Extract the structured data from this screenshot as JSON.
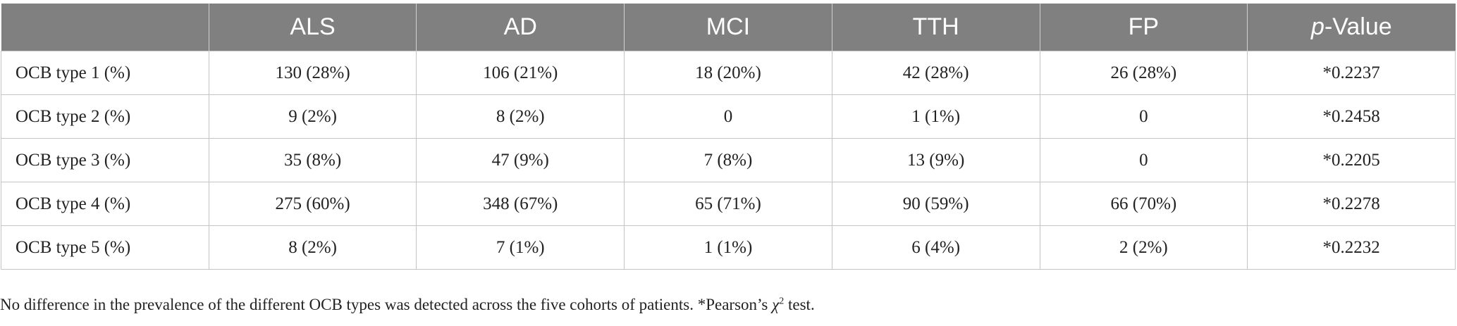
{
  "table": {
    "header": [
      "",
      "ALS",
      "AD",
      "MCI",
      "TTH",
      "FP",
      {
        "italic": "p",
        "text": "-Value"
      }
    ],
    "rows": [
      [
        "OCB type 1 (%)",
        "130 (28%)",
        "106 (21%)",
        "18 (20%)",
        "42 (28%)",
        "26 (28%)",
        "*0.2237"
      ],
      [
        "OCB type 2 (%)",
        "9 (2%)",
        "8 (2%)",
        "0",
        "1 (1%)",
        "0",
        "*0.2458"
      ],
      [
        "OCB type 3 (%)",
        "35 (8%)",
        "47 (9%)",
        "7 (8%)",
        "13 (9%)",
        "0",
        "*0.2205"
      ],
      [
        "OCB type 4 (%)",
        "275 (60%)",
        "348 (67%)",
        "65 (71%)",
        "90 (59%)",
        "66 (70%)",
        "*0.2278"
      ],
      [
        "OCB type 5 (%)",
        "8 (2%)",
        "7 (1%)",
        "1 (1%)",
        "6 (4%)",
        "2 (2%)",
        "*0.2232"
      ]
    ]
  },
  "footnote": {
    "text": "No difference in the prevalence of the different OCB types was detected across the five cohorts of patients. *Pearson’s ",
    "symbol": "χ",
    "sup": "2",
    "after": " test."
  }
}
